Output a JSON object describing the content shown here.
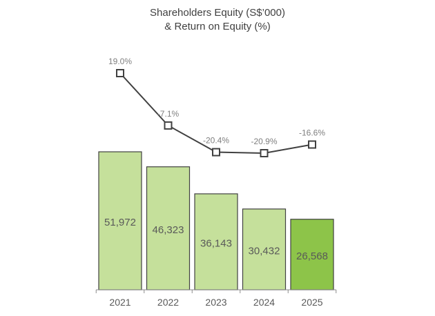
{
  "chart_data": {
    "type": "bar",
    "title_lines": [
      "Shareholders Equity (S$’000)",
      "& Return on Equity (%)"
    ],
    "categories": [
      "2021",
      "2022",
      "2023",
      "2024",
      "2025"
    ],
    "bar_labels": [
      "51,972",
      "46,323",
      "36,143",
      "30,432",
      "26,568"
    ],
    "line_labels": [
      "19.0%",
      "-7.1%",
      "-20.4%",
      "-20.9%",
      "-16.6%"
    ],
    "series": [
      {
        "type": "bar",
        "values": [
          51972,
          46323,
          36143,
          30432,
          26568
        ]
      },
      {
        "type": "line",
        "values": [
          19.0,
          -7.1,
          -20.4,
          -20.9,
          -16.6
        ]
      }
    ],
    "colors": {
      "bar": "#c5e09b",
      "bar_highlight": "#8dc449",
      "bar_edge": "#404040",
      "line": "#404040",
      "marker_fill": "#ffffff"
    },
    "grid": false,
    "legend": "none"
  }
}
